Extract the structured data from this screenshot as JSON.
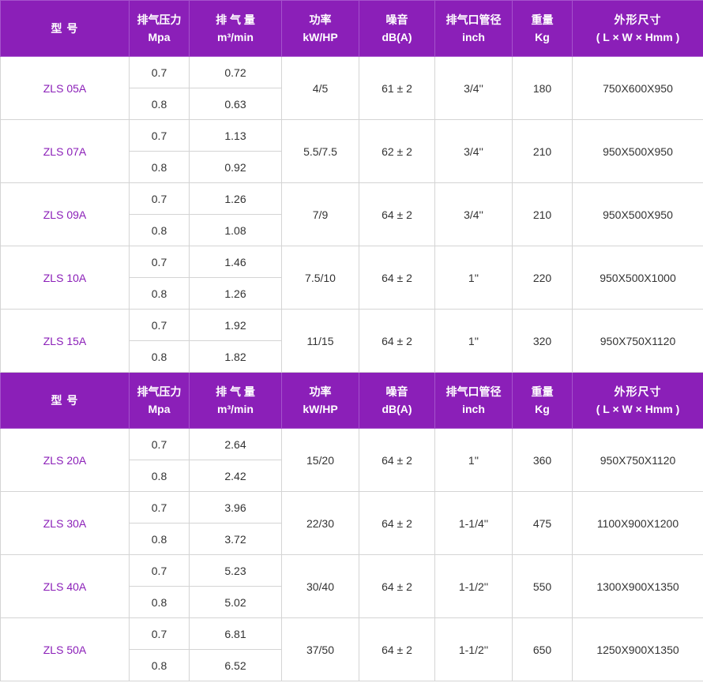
{
  "header": {
    "model": "型  号",
    "pressure": "排气压力",
    "pressure_unit": "Mpa",
    "flow": "排 气 量",
    "flow_unit": "m³/min",
    "power": "功率",
    "power_unit": "kW/HP",
    "noise": "噪音",
    "noise_unit": "dB(A)",
    "pipe": "排气口管径",
    "pipe_unit": "inch",
    "weight": "重量",
    "weight_unit": "Kg",
    "size": "外形尺寸",
    "size_unit": "( L × W × Hmm )"
  },
  "rows_a": [
    {
      "model": "ZLS 05A",
      "p1": "0.7",
      "f1": "0.72",
      "p2": "0.8",
      "f2": "0.63",
      "power": "4/5",
      "noise": "61 ± 2",
      "pipe": "3/4''",
      "weight": "180",
      "size": "750X600X950"
    },
    {
      "model": "ZLS 07A",
      "p1": "0.7",
      "f1": "1.13",
      "p2": "0.8",
      "f2": "0.92",
      "power": "5.5/7.5",
      "noise": "62 ± 2",
      "pipe": "3/4''",
      "weight": "210",
      "size": "950X500X950"
    },
    {
      "model": "ZLS 09A",
      "p1": "0.7",
      "f1": "1.26",
      "p2": "0.8",
      "f2": "1.08",
      "power": "7/9",
      "noise": "64 ± 2",
      "pipe": "3/4''",
      "weight": "210",
      "size": "950X500X950"
    },
    {
      "model": "ZLS 10A",
      "p1": "0.7",
      "f1": "1.46",
      "p2": "0.8",
      "f2": "1.26",
      "power": "7.5/10",
      "noise": "64 ± 2",
      "pipe": "1''",
      "weight": "220",
      "size": "950X500X1000"
    },
    {
      "model": "ZLS 15A",
      "p1": "0.7",
      "f1": "1.92",
      "p2": "0.8",
      "f2": "1.82",
      "power": "11/15",
      "noise": "64 ± 2",
      "pipe": "1''",
      "weight": "320",
      "size": "950X750X1120"
    }
  ],
  "rows_b": [
    {
      "model": "ZLS 20A",
      "p1": "0.7",
      "f1": "2.64",
      "p2": "0.8",
      "f2": "2.42",
      "power": "15/20",
      "noise": "64 ± 2",
      "pipe": "1''",
      "weight": "360",
      "size": "950X750X1120"
    },
    {
      "model": "ZLS 30A",
      "p1": "0.7",
      "f1": "3.96",
      "p2": "0.8",
      "f2": "3.72",
      "power": "22/30",
      "noise": "64 ± 2",
      "pipe": "1-1/4''",
      "weight": "475",
      "size": "1100X900X1200"
    },
    {
      "model": "ZLS 40A",
      "p1": "0.7",
      "f1": "5.23",
      "p2": "0.8",
      "f2": "5.02",
      "power": "30/40",
      "noise": "64 ± 2",
      "pipe": "1-1/2''",
      "weight": "550",
      "size": "1300X900X1350"
    },
    {
      "model": "ZLS 50A",
      "p1": "0.7",
      "f1": "6.81",
      "p2": "0.8",
      "f2": "6.52",
      "power": "37/50",
      "noise": "64 ± 2",
      "pipe": "1-1/2''",
      "weight": "650",
      "size": "1250X900X1350"
    }
  ],
  "colors": {
    "header_bg": "#8b1fb8",
    "model_text": "#8b1fb8"
  }
}
